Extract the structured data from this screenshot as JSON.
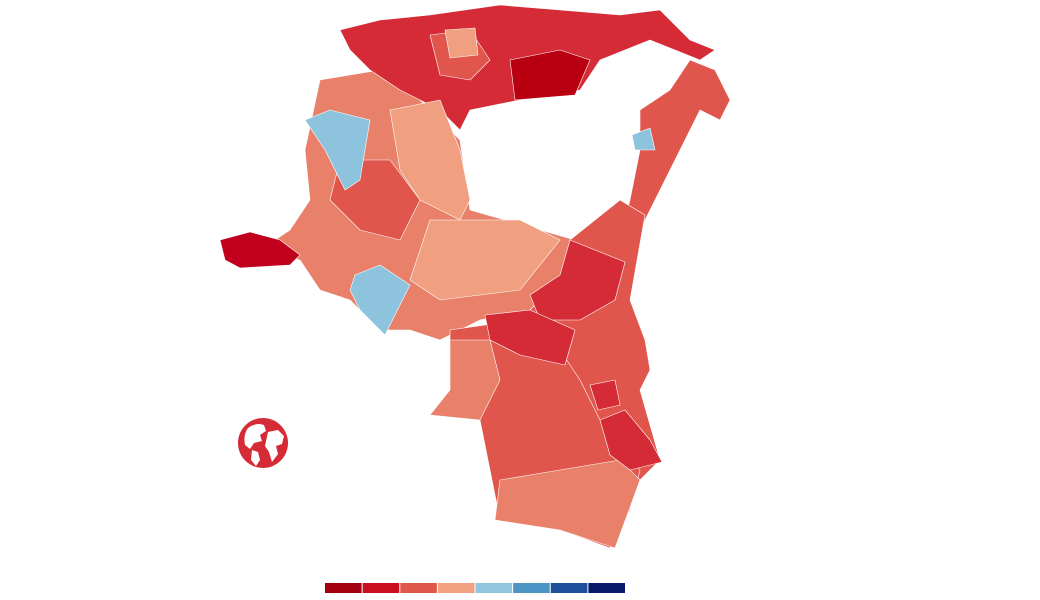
{
  "legend": {
    "colors": [
      "#a50010",
      "#c8101e",
      "#e0574c",
      "#f2a281",
      "#92c5de",
      "#4a95c6",
      "#1f4f9a",
      "#0a1a6b"
    ]
  }
}
